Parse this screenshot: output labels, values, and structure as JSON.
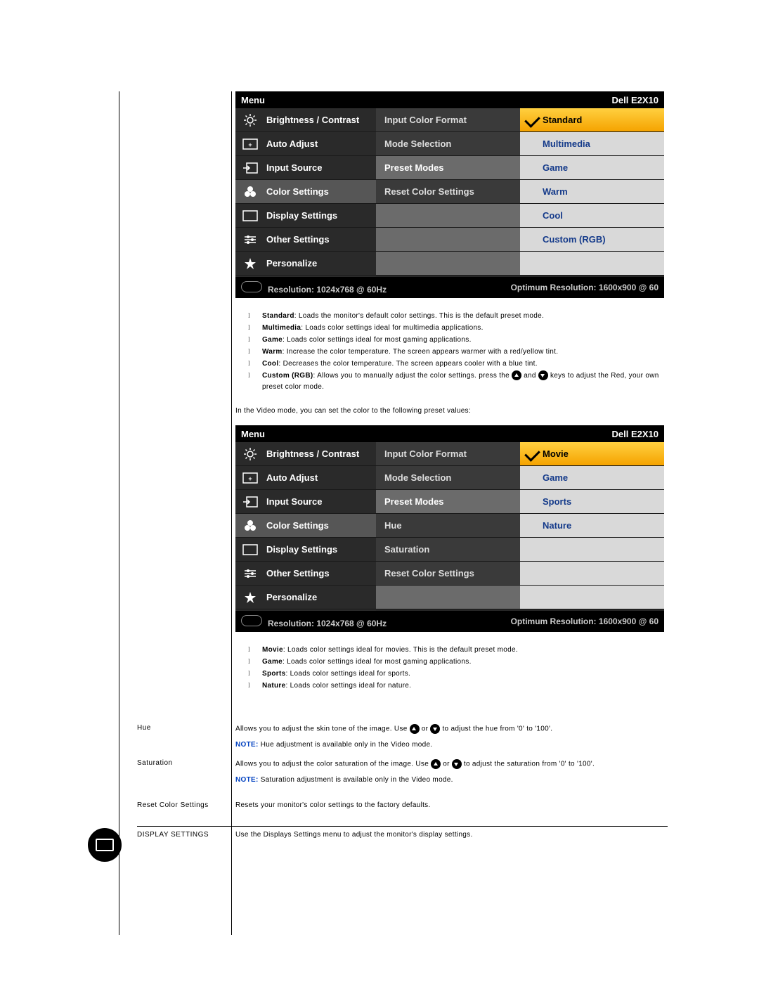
{
  "model": "Dell E2X10",
  "menu_label": "Menu",
  "resolution_text": "Resolution: 1024x768 @ 60Hz",
  "optimum_text": "Optimum Resolution: 1600x900 @ 60",
  "main_menu": [
    {
      "label": "Brightness / Contrast",
      "icon": "brightness"
    },
    {
      "label": "Auto Adjust",
      "icon": "auto-adjust"
    },
    {
      "label": "Input Source",
      "icon": "input-source"
    },
    {
      "label": "Color Settings",
      "icon": "color-settings",
      "selected": true
    },
    {
      "label": "Display Settings",
      "icon": "display"
    },
    {
      "label": "Other Settings",
      "icon": "other"
    },
    {
      "label": "Personalize",
      "icon": "personalize"
    }
  ],
  "osd1": {
    "col2": [
      {
        "label": "Input Color Format"
      },
      {
        "label": "Mode Selection"
      },
      {
        "label": "Preset Modes",
        "highlight": true
      },
      {
        "label": "Reset Color Settings"
      },
      {
        "empty": true
      },
      {
        "empty": true
      },
      {
        "empty": true
      }
    ],
    "col3": [
      {
        "label": "Standard",
        "selected": true
      },
      {
        "label": "Multimedia"
      },
      {
        "label": "Game"
      },
      {
        "label": "Warm"
      },
      {
        "label": "Cool"
      },
      {
        "label": "Custom (RGB)"
      },
      {
        "empty": true
      }
    ]
  },
  "osd2": {
    "col2": [
      {
        "label": "Input Color Format"
      },
      {
        "label": "Mode Selection"
      },
      {
        "label": "Preset Modes",
        "highlight": true
      },
      {
        "label": "Hue"
      },
      {
        "label": "Saturation"
      },
      {
        "label": "Reset Color Settings"
      },
      {
        "empty": true
      }
    ],
    "col3": [
      {
        "label": "Movie",
        "selected": true
      },
      {
        "label": "Game"
      },
      {
        "label": "Sports"
      },
      {
        "label": "Nature"
      },
      {
        "empty": true
      },
      {
        "empty": true
      },
      {
        "empty": true
      }
    ]
  },
  "desc1": [
    {
      "term": "Standard",
      "text": ": Loads the monitor's default color settings. This is the default preset mode."
    },
    {
      "term": "Multimedia",
      "text": ": Loads color settings ideal for multimedia applications."
    },
    {
      "term": "Game",
      "text": ": Loads color settings ideal for most gaming applications."
    },
    {
      "term": "Warm",
      "text": ": Increase the color temperature. The screen appears warmer with a red/yellow tint."
    },
    {
      "term": "Cool",
      "text": ": Decreases the color temperature. The screen appears cooler with a blue tint."
    }
  ],
  "desc1_custom": {
    "term": "Custom (RGB)",
    "pre": ": Allows you to manually adjust the color settings. press the ",
    "mid": " and ",
    "post": " keys to adjust the Red, your own preset color mode."
  },
  "video_intro": "In the Video mode, you can set the color to the following preset values:",
  "desc2": [
    {
      "term": "Movie",
      "text": ": Loads color settings ideal for movies. This is the default preset mode."
    },
    {
      "term": "Game",
      "text": ": Loads color settings ideal for most gaming applications."
    },
    {
      "term": "Sports",
      "text": ": Loads color settings ideal for sports."
    },
    {
      "term": "Nature",
      "text": ": Loads color settings ideal for nature."
    }
  ],
  "rows": {
    "hue": {
      "label": "Hue",
      "pre": "Allows you to adjust the skin tone of the image. Use ",
      "mid": " or ",
      "post": " to adjust the hue from '0' to '100'.",
      "note": " Hue adjustment is available only in the Video mode."
    },
    "saturation": {
      "label": "Saturation",
      "pre": "Allows you to adjust the color saturation of the image. Use ",
      "mid": " or ",
      "post": " to adjust the saturation from '0' to '100'.",
      "note": " Saturation adjustment is available only in the Video mode."
    },
    "reset": {
      "label": "Reset Color Settings",
      "text": "Resets your monitor's color settings to the factory defaults."
    },
    "display": {
      "label": "DISPLAY SETTINGS",
      "text": "Use the Displays Settings menu to adjust the monitor's display settings."
    }
  },
  "note_label": "NOTE:"
}
